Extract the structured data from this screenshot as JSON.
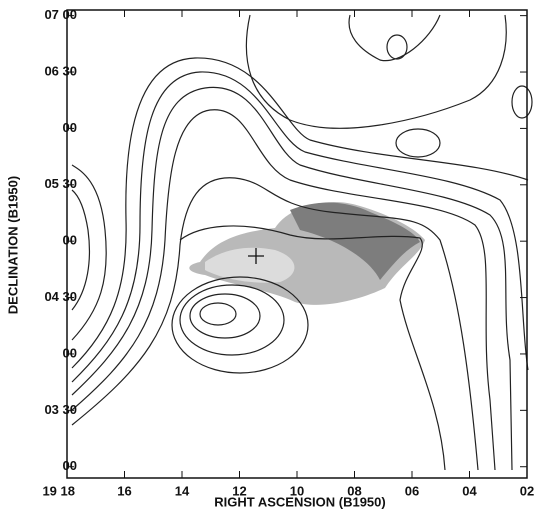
{
  "chart_data": {
    "type": "contour",
    "xlabel": "RIGHT ASCENSION (B1950)",
    "ylabel": "DECLINATION (B1950)",
    "xlim": [
      18,
      2
    ],
    "ylim": [
      174,
      423
    ],
    "xticks": [
      {
        "value": 18,
        "label": "19 18"
      },
      {
        "value": 16,
        "label": "16"
      },
      {
        "value": 14,
        "label": "14"
      },
      {
        "value": 12,
        "label": "12"
      },
      {
        "value": 10,
        "label": "10"
      },
      {
        "value": 8,
        "label": "08"
      },
      {
        "value": 6,
        "label": "06"
      },
      {
        "value": 4,
        "label": "04"
      },
      {
        "value": 2,
        "label": "02"
      }
    ],
    "yticks": [
      {
        "value": 420,
        "label": "07 00"
      },
      {
        "value": 390,
        "label": "06 30"
      },
      {
        "value": 360,
        "label": "00"
      },
      {
        "value": 330,
        "label": "05 30"
      },
      {
        "value": 300,
        "label": "00"
      },
      {
        "value": 270,
        "label": "04 30"
      },
      {
        "value": 240,
        "label": "00"
      },
      {
        "value": 210,
        "label": "03 30"
      },
      {
        "value": 180,
        "label": "00"
      }
    ]
  }
}
